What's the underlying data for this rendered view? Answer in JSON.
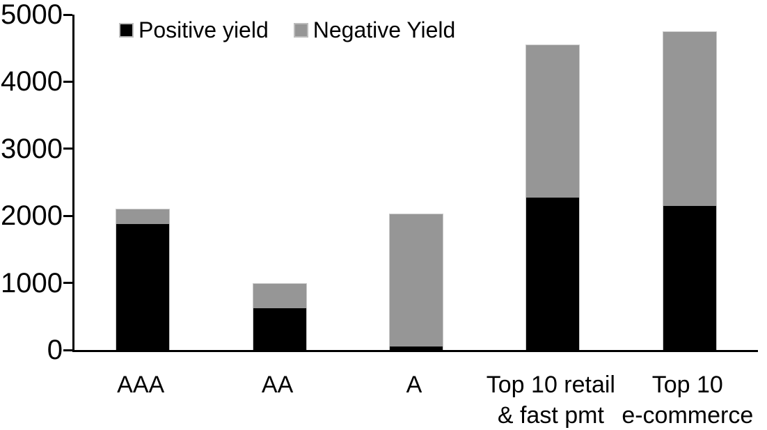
{
  "chart_data": {
    "type": "bar",
    "stacked": true,
    "title": "",
    "xlabel": "",
    "ylabel": "",
    "categories": [
      "AAA",
      "AA",
      "A",
      "Top 10 retail & fast pmt",
      "Top 10 e-commerce"
    ],
    "category_label_lines": [
      [
        "AAA"
      ],
      [
        "AA"
      ],
      [
        "A"
      ],
      [
        "Top 10 retail",
        "& fast pmt"
      ],
      [
        "Top 10",
        "e-commerce"
      ]
    ],
    "series": [
      {
        "name": "Positive yield",
        "color": "#000000",
        "values": [
          1890,
          630,
          50,
          2280,
          2150
        ]
      },
      {
        "name": "Negative Yield",
        "color": "#969696",
        "values": [
          220,
          370,
          1980,
          2270,
          2600
        ]
      }
    ],
    "totals": [
      2110,
      1000,
      2030,
      4550,
      4750
    ],
    "ylim": [
      0,
      5000
    ],
    "yticks": [
      0,
      1000,
      2000,
      3000,
      4000,
      5000
    ],
    "grid": false,
    "legend_position": "top",
    "axis_color": "#000000",
    "bar_outline_color": "#c9c9c9",
    "background_color": "#ffffff"
  }
}
